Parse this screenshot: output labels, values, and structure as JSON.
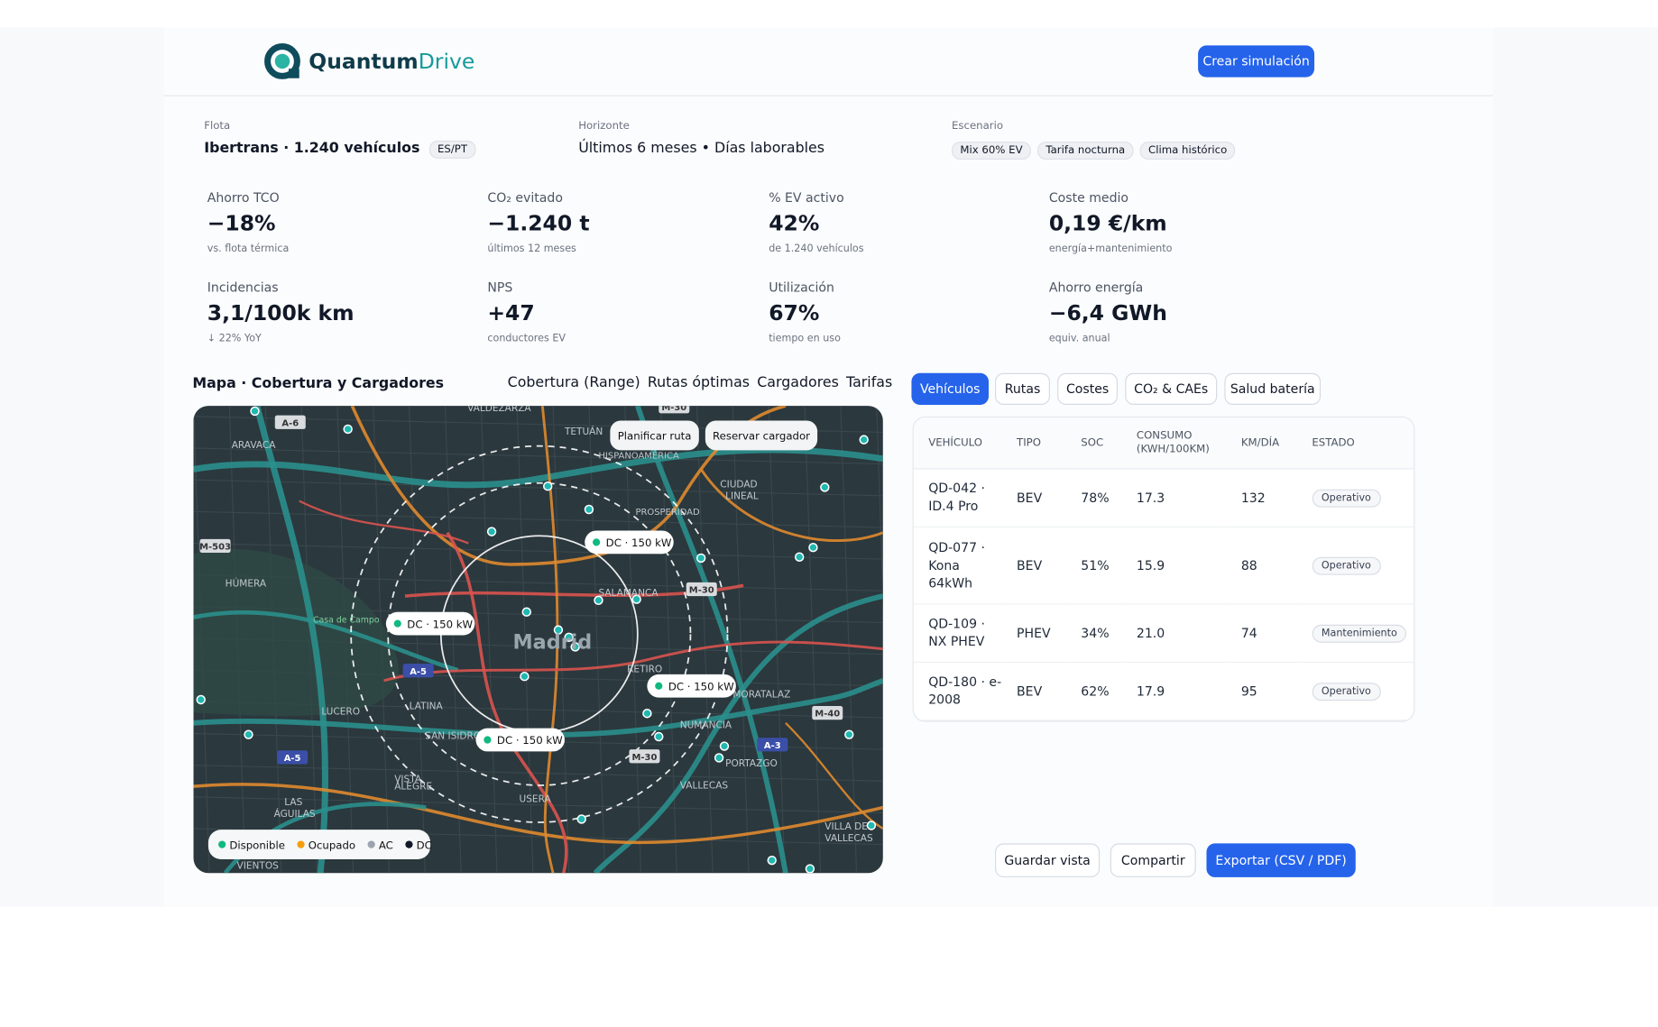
{
  "header": {
    "brand_a": "Quantum",
    "brand_b": "Drive",
    "button": "Crear simulación"
  },
  "context": {
    "fleet": {
      "label": "Flota",
      "value": "Ibertrans · 1.240 vehículos",
      "badge": "ES/PT"
    },
    "horizon": {
      "label": "Horizonte",
      "value": "Últimos 6 meses • Días laborables"
    },
    "scenario": {
      "label": "Escenario",
      "tags": [
        "Mix 60% EV",
        "Tarifa nocturna",
        "Clima histórico"
      ]
    }
  },
  "kpis": [
    {
      "label": "Ahorro TCO",
      "value": "−18%",
      "note": "vs. flota térmica"
    },
    {
      "label": "CO₂ evitado",
      "value": "−1.240 t",
      "note": "últimos 12 meses"
    },
    {
      "label": "% EV activo",
      "value": "42%",
      "note": "de 1.240 vehículos"
    },
    {
      "label": "Coste medio",
      "value": "0,19 €/km",
      "note": "energía+mantenimiento"
    },
    {
      "label": "Incidencias",
      "value": "3,1/100k km",
      "note": "↓ 22% YoY"
    },
    {
      "label": "NPS",
      "value": "+47",
      "note": "conductores EV"
    },
    {
      "label": "Utilización",
      "value": "67%",
      "note": "tiempo en uso"
    },
    {
      "label": "Ahorro energía",
      "value": "−6,4 GWh",
      "note": "equiv. anual"
    }
  ],
  "map": {
    "title": "Mapa · Cobertura y Cargadores",
    "tabs": [
      "Cobertura (Range)",
      "Rutas óptimas",
      "Cargadores",
      "Tarifas"
    ],
    "actions": [
      "Planificar ruta",
      "Reservar cargador"
    ],
    "chargers": [
      "DC · 150 kW",
      "DC · 150 kW",
      "DC · 150 kW",
      "DC · 150 kW"
    ],
    "legend": [
      "Disponible",
      "Ocupado",
      "AC",
      "DC"
    ],
    "places": [
      "VALDEZARZA",
      "TETUÁN",
      "HISPANOAMÉRICA",
      "ARAVACA",
      "CIUDAD",
      "LINEAL",
      "PROSPERIDAD",
      "HÚMERA",
      "SALAMANCA",
      "Casa de Campo",
      "Madrid",
      "RETIRO",
      "LUCERO",
      "LATINA",
      "MORATALAZ",
      "SAN ISIDRO",
      "NUMANCIA",
      "PORTAZGO",
      "VALLECAS",
      "USERA",
      "LAS",
      "ÁGUILAS",
      "VISTA",
      "ALEGRE",
      "VIENTOS",
      "VILLA DE",
      "VALLECAS"
    ],
    "roads": [
      "A-6",
      "M-503",
      "M-30",
      "A-5",
      "A-5",
      "A-3",
      "M-30",
      "M-40",
      "M-30"
    ]
  },
  "table": {
    "tabs": [
      "Vehículos",
      "Rutas",
      "Costes",
      "CO₂ & CAEs",
      "Salud batería"
    ],
    "columns": [
      "VEHÍCULO",
      "TIPO",
      "SOC",
      "CONSUMO (KWH/100KM)",
      "KM/DÍA",
      "ESTADO"
    ],
    "rows": [
      [
        "QD-042 · ID.4 Pro",
        "BEV",
        "78%",
        "17.3",
        "132",
        "Operativo"
      ],
      [
        "QD-077 · Kona 64kWh",
        "BEV",
        "51%",
        "15.9",
        "88",
        "Operativo"
      ],
      [
        "QD-109 · NX PHEV",
        "PHEV",
        "34%",
        "21.0",
        "74",
        "Mantenimiento"
      ],
      [
        "QD-180 · e-2008",
        "BEV",
        "62%",
        "17.9",
        "95",
        "Operativo"
      ]
    ]
  },
  "footer": {
    "buttons": [
      "Guardar vista",
      "Compartir",
      "Exportar (CSV / PDF)"
    ]
  }
}
